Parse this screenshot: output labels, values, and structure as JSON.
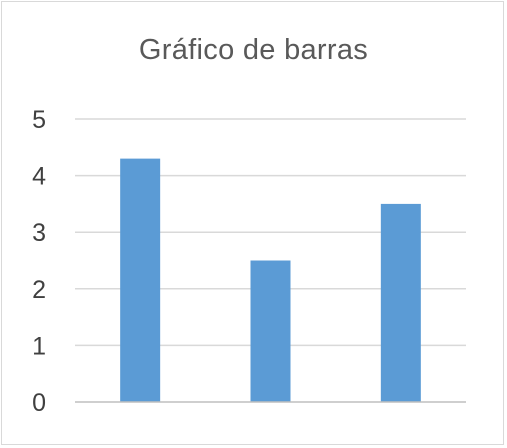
{
  "chart_data": {
    "type": "bar",
    "title": "Gráfico de barras",
    "xlabel": "",
    "ylabel": "",
    "categories": [
      "",
      "",
      ""
    ],
    "values": [
      4.3,
      2.5,
      3.5
    ],
    "ylim": [
      0,
      5
    ],
    "yticks": [
      "0",
      "1",
      "2",
      "3",
      "4",
      "5"
    ],
    "grid": true,
    "legend": "none",
    "bar_color": "#5b9bd5",
    "grid_color": "#d9d9d9",
    "axis_color": "#bfbfbf"
  }
}
